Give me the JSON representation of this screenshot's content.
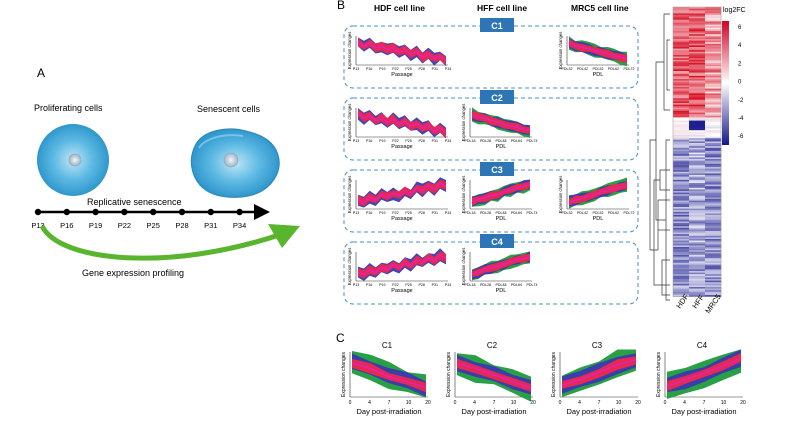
{
  "panel_a": {
    "letter": "A",
    "proliferating_label": "Proliferating cells",
    "senescent_label": "Senescent cells",
    "timeline_label": "Replicative senescence",
    "passages": [
      "P13",
      "P16",
      "P19",
      "P22",
      "P25",
      "P28",
      "P31",
      "P34"
    ],
    "profiling_label": "Gene expression profiling"
  },
  "panel_b": {
    "letter": "B",
    "columns": [
      "HDF cell line",
      "HFF cell line",
      "MRC5 cell line"
    ],
    "clusters": [
      {
        "name": "C1",
        "trend": "down",
        "hdf": {
          "ylabel": "Expression changes",
          "xlabel": "Passage",
          "ticks": [
            "P13",
            "P16",
            "P19",
            "P22",
            "P25",
            "P28",
            "P31",
            "P34"
          ]
        },
        "mrc5": {
          "ylabel": "Expression changes",
          "xlabel": "PDL",
          "ticks": [
            "PDL32",
            "PDL42",
            "PDL52",
            "PDL62",
            "PDL72"
          ]
        }
      },
      {
        "name": "C2",
        "trend": "down",
        "hdf": {
          "ylabel": "Expression changes",
          "xlabel": "Passage",
          "ticks": [
            "P13",
            "P16",
            "P19",
            "P22",
            "P25",
            "P28",
            "P31",
            "P34"
          ]
        },
        "hff": {
          "ylabel": "Expression changes",
          "xlabel": "PDL",
          "ticks": [
            "PDL18",
            "PDL28",
            "PDL48",
            "PDL64",
            "PDL74"
          ]
        }
      },
      {
        "name": "C3",
        "trend": "up",
        "hdf": {
          "ylabel": "Expression changes",
          "xlabel": "Passage",
          "ticks": [
            "P13",
            "P16",
            "P19",
            "P22",
            "P25",
            "P28",
            "P31",
            "P34"
          ]
        },
        "hff": {
          "ylabel": "Expression changes",
          "xlabel": "PDL",
          "ticks": [
            "PDL18",
            "PDL28",
            "PDL48",
            "PDL64",
            "PDL74"
          ]
        },
        "mrc5": {
          "ylabel": "Expression changes",
          "xlabel": "PDL",
          "ticks": [
            "PDL32",
            "PDL42",
            "PDL52",
            "PDL62",
            "PDL72"
          ]
        }
      },
      {
        "name": "C4",
        "trend": "up",
        "hdf": {
          "ylabel": "Expression changes",
          "xlabel": "Passage",
          "ticks": [
            "P13",
            "P16",
            "P19",
            "P22",
            "P25",
            "P28",
            "P31",
            "P34"
          ]
        },
        "hff": {
          "ylabel": "Expression changes",
          "xlabel": "PDL",
          "ticks": [
            "PDL18",
            "PDL28",
            "PDL48",
            "PDL64",
            "PDL74"
          ]
        }
      }
    ],
    "heatmap": {
      "colorbar_title": "log2FC",
      "colorbar_ticks": [
        "6",
        "4",
        "2",
        "0",
        "-2",
        "-4",
        "-6"
      ],
      "column_labels": [
        "HDF",
        "HFF",
        "MRC5"
      ]
    }
  },
  "panel_c": {
    "letter": "C",
    "charts": [
      {
        "name": "C1",
        "ylabel": "Expression changes",
        "xlabel": "Day post-irradiation",
        "ticks": [
          "0",
          "4",
          "7",
          "10",
          "20"
        ],
        "trend": "down"
      },
      {
        "name": "C2",
        "ylabel": "Expression changes",
        "xlabel": "Day post-irradiation",
        "ticks": [
          "0",
          "4",
          "7",
          "10",
          "20"
        ],
        "trend": "down"
      },
      {
        "name": "C3",
        "ylabel": "Expression changes",
        "xlabel": "Day post-irradiation",
        "ticks": [
          "0",
          "4",
          "7",
          "10",
          "20"
        ],
        "trend": "up"
      },
      {
        "name": "C4",
        "ylabel": "Expression changes",
        "xlabel": "Day post-irradiation",
        "ticks": [
          "0",
          "4",
          "7",
          "10",
          "20"
        ],
        "trend": "up"
      }
    ]
  },
  "colors": {
    "cluster_box_border": "#4a90c8",
    "cluster_badge": "#2e75b6",
    "heat_red": "#e8102a",
    "heat_blue": "#1a1a8c",
    "band_red": "#f0284a",
    "band_blue": "#3a3ab0",
    "band_green": "#1e9a3c",
    "mean_line": "#e020c8",
    "cell_blue": "#3aa7d8",
    "arrow_green": "#5ab52e"
  }
}
